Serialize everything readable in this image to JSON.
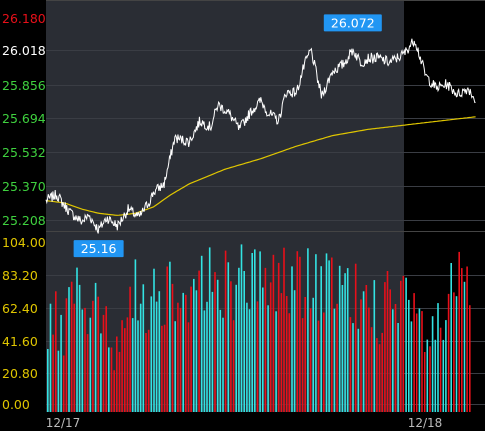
{
  "colors": {
    "background": "#000000",
    "session_panel": "#2a2d34",
    "price_line": "#ffffff",
    "average_line": "#e0c600",
    "volume_up": "#33e3e3",
    "volume_down": "#e8101a",
    "label_box": "#2196f3",
    "axis_text_up": "#e8101a",
    "axis_text_neutral": "#ffffff",
    "axis_text_down": "#3fd13f",
    "axis_text_volume": "#e0c600",
    "date_text": "#bbbbbb"
  },
  "chart_data": [
    {
      "type": "line",
      "name": "price-panel",
      "sessions": [
        "12/17",
        "12/18"
      ],
      "y_ticks": [
        "26.180",
        "26.018",
        "25.856",
        "25.694",
        "25.532",
        "25.370",
        "25.208"
      ],
      "y_tick_values": [
        26.18,
        26.018,
        25.856,
        25.694,
        25.532,
        25.37,
        25.208
      ],
      "y_tick_tone": [
        "up",
        "neutral",
        "down",
        "down",
        "down",
        "down",
        "down"
      ],
      "ylim": [
        25.16,
        26.2
      ],
      "annotations": [
        {
          "text": "26.072",
          "x": 0.857,
          "y": 26.072,
          "kind": "high"
        },
        {
          "text": "25.16",
          "x": 0.147,
          "y": 25.16,
          "kind": "low"
        }
      ],
      "price": {
        "x": [
          0,
          0.03,
          0.05,
          0.07,
          0.1,
          0.12,
          0.147,
          0.17,
          0.2,
          0.23,
          0.26,
          0.29,
          0.3,
          0.33,
          0.36,
          0.4,
          0.43,
          0.46,
          0.48,
          0.51,
          0.54,
          0.57,
          0.6,
          0.62,
          0.65,
          0.67,
          0.7,
          0.72,
          0.74,
          0.77,
          0.8,
          0.83,
          0.857,
          0.88,
          0.9,
          0.93,
          0.96,
          1.0,
          1.03,
          1.06,
          1.09,
          1.12,
          1.15,
          1.18,
          1.2
        ],
        "y": [
          25.3,
          25.33,
          25.28,
          25.24,
          25.2,
          25.23,
          25.16,
          25.22,
          25.18,
          25.26,
          25.22,
          25.3,
          25.34,
          25.38,
          25.6,
          25.58,
          25.68,
          25.65,
          25.76,
          25.72,
          25.64,
          25.72,
          25.78,
          25.72,
          25.68,
          25.82,
          25.82,
          25.94,
          26.02,
          25.8,
          25.92,
          25.95,
          26.02,
          25.96,
          25.98,
          25.98,
          25.96,
          26.0,
          26.072,
          25.9,
          25.84,
          25.86,
          25.81,
          25.84,
          25.78
        ]
      },
      "average": {
        "x": [
          0,
          0.05,
          0.1,
          0.147,
          0.2,
          0.25,
          0.3,
          0.35,
          0.4,
          0.5,
          0.6,
          0.7,
          0.8,
          0.9,
          1.0,
          1.1,
          1.2
        ],
        "y": [
          25.3,
          25.29,
          25.26,
          25.24,
          25.23,
          25.24,
          25.27,
          25.33,
          25.38,
          25.45,
          25.5,
          25.56,
          25.61,
          25.64,
          25.66,
          25.68,
          25.7
        ]
      }
    },
    {
      "type": "bar",
      "name": "volume-panel",
      "y_ticks": [
        "104.00",
        "83.20",
        "62.40",
        "41.60",
        "20.80",
        "0.00"
      ],
      "y_tick_values": [
        104,
        83.2,
        62.4,
        41.6,
        20.8,
        0
      ],
      "ylim": [
        0,
        104
      ],
      "bar_count": 160,
      "profile": {
        "x": [
          0,
          0.04,
          0.08,
          0.12,
          0.16,
          0.2,
          0.24,
          0.3,
          0.38,
          0.5,
          0.6,
          0.7,
          0.8,
          0.86,
          0.89,
          0.92,
          0.95,
          0.98,
          1.0
        ],
        "y": [
          45,
          60,
          70,
          55,
          48,
          70,
          72,
          78,
          80,
          82,
          80,
          72,
          65,
          58,
          50,
          42,
          70,
          74,
          70
        ]
      }
    }
  ]
}
